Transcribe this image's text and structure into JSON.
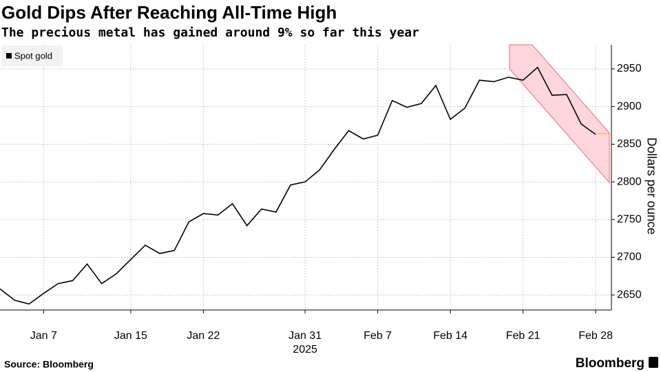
{
  "chart_data": {
    "type": "line",
    "title": "Gold Dips After Reaching All-Time High",
    "subtitle": "The precious metal has gained around 9% so far this year",
    "y_label": "Dollars per ounce",
    "x_year_label": "2025",
    "source": "Source: Bloomberg",
    "brand": "Bloomberg",
    "categories": [
      null,
      null,
      null,
      "Jan 7",
      null,
      null,
      null,
      null,
      null,
      "Jan 15",
      null,
      null,
      null,
      null,
      "Jan 22",
      null,
      null,
      null,
      null,
      null,
      null,
      "Jan 31",
      null,
      null,
      null,
      null,
      "Feb 7",
      null,
      null,
      null,
      null,
      "Feb 14",
      null,
      null,
      null,
      null,
      "Feb 21",
      null,
      null,
      null,
      null,
      "Feb 28"
    ],
    "series": [
      {
        "name": "Spot gold",
        "color": "#000000",
        "values": [
          2658,
          2643,
          2638,
          2652,
          2665,
          2669,
          2691,
          2665,
          2678,
          2697,
          2716,
          2705,
          2709,
          2747,
          2758,
          2756,
          2771,
          2742,
          2764,
          2760,
          2796,
          2800,
          2816,
          2843,
          2868,
          2857,
          2862,
          2908,
          2899,
          2904,
          2928,
          2883,
          2898,
          2935,
          2933,
          2939,
          2935,
          2952,
          2915,
          2916,
          2877,
          2863
        ]
      }
    ],
    "ylim": [
      2630,
      2982
    ],
    "yticks": [
      2650,
      2700,
      2750,
      2800,
      2850,
      2900,
      2950
    ],
    "grid": true,
    "legend": "top-left"
  }
}
